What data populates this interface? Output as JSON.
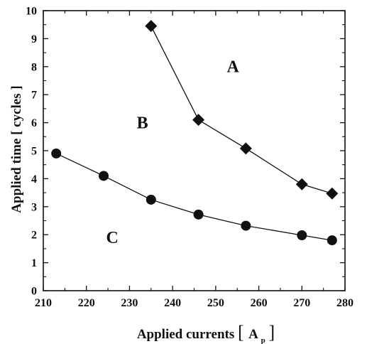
{
  "chart_data": {
    "type": "line",
    "title": "",
    "xlabel": "Applied currents",
    "xlabel_unit_symbol": "A",
    "xlabel_unit_sub": "p",
    "ylabel": "Applied time [ cycles ]",
    "xlim": [
      210,
      280
    ],
    "ylim": [
      0,
      10
    ],
    "x_ticks": [
      210,
      220,
      230,
      240,
      250,
      260,
      270,
      280
    ],
    "y_ticks": [
      0,
      1,
      2,
      3,
      4,
      5,
      6,
      7,
      8,
      9,
      10
    ],
    "grid": false,
    "series": [
      {
        "marker": "diamond",
        "color": "#111111",
        "x": [
          235,
          246,
          257,
          270,
          277
        ],
        "y": [
          9.45,
          6.1,
          5.08,
          3.8,
          3.47
        ]
      },
      {
        "marker": "circle",
        "color": "#111111",
        "x": [
          213,
          224,
          235,
          246,
          257,
          270,
          277
        ],
        "y": [
          4.9,
          4.1,
          3.25,
          2.72,
          2.32,
          1.98,
          1.8
        ]
      }
    ],
    "annotations": [
      {
        "text": "A",
        "x": 254,
        "y": 7.8
      },
      {
        "text": "B",
        "x": 233,
        "y": 5.8
      },
      {
        "text": "C",
        "x": 226,
        "y": 1.7
      }
    ]
  }
}
